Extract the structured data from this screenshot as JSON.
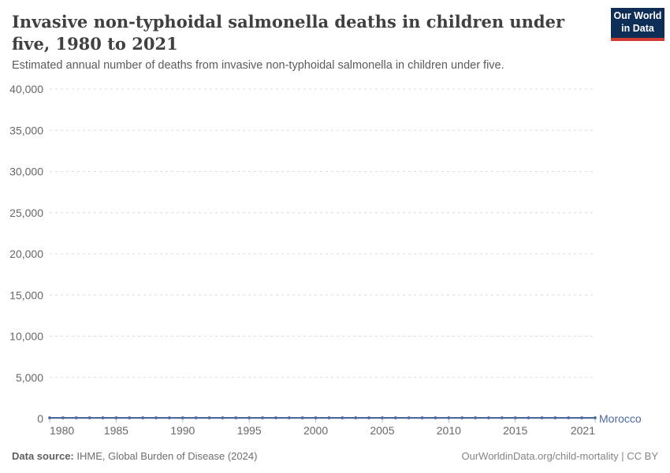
{
  "header": {
    "title": "Invasive non-typhoidal salmonella deaths in children under five, 1980 to 2021",
    "subtitle": "Estimated annual number of deaths from invasive non-typhoidal salmonella in children under five."
  },
  "logo": {
    "line1": "Our World",
    "line2": "in Data"
  },
  "footer": {
    "source_label": "Data source:",
    "source_text": " IHME, Global Burden of Disease (2024)",
    "license_text": "OurWorldinData.org/child-mortality | CC BY"
  },
  "colors": {
    "series_blue": "#4c6a9c",
    "grid": "#dcdcdc",
    "axis_baseline": "#cbcbcb",
    "tick_mark": "#b9bdc3",
    "tick_text": "#67676c",
    "logo_navy": "#0f2e57",
    "logo_red": "#cf3b32"
  },
  "chart_data": {
    "type": "line",
    "title": "Invasive non-typhoidal salmonella deaths in children under five, 1980 to 2021",
    "xlabel": "",
    "ylabel": "",
    "x": [
      1980,
      1981,
      1982,
      1983,
      1984,
      1985,
      1986,
      1987,
      1988,
      1989,
      1990,
      1991,
      1992,
      1993,
      1994,
      1995,
      1996,
      1997,
      1998,
      1999,
      2000,
      2001,
      2002,
      2003,
      2004,
      2005,
      2006,
      2007,
      2008,
      2009,
      2010,
      2011,
      2012,
      2013,
      2014,
      2015,
      2016,
      2017,
      2018,
      2019,
      2020,
      2021
    ],
    "series": [
      {
        "name": "Morocco",
        "color": "#4c6a9c",
        "values": [
          0,
          0,
          0,
          0,
          0,
          0,
          0,
          0,
          0,
          0,
          0,
          0,
          0,
          0,
          0,
          0,
          0,
          0,
          0,
          0,
          0,
          0,
          0,
          0,
          0,
          0,
          0,
          0,
          0,
          0,
          0,
          0,
          0,
          0,
          0,
          0,
          0,
          0,
          0,
          0,
          0,
          0
        ]
      }
    ],
    "values_note": "Series runs flat along the baseline; values are indistinguishable from zero at the 0–40,000 axis scale.",
    "ylim": [
      0,
      40000
    ],
    "yticks": [
      0,
      5000,
      10000,
      15000,
      20000,
      25000,
      30000,
      35000,
      40000
    ],
    "ytick_labels": [
      "0",
      "5,000",
      "10,000",
      "15,000",
      "20,000",
      "25,000",
      "30,000",
      "35,000",
      "40,000"
    ],
    "xticks": [
      1980,
      1985,
      1990,
      1995,
      2000,
      2005,
      2010,
      2015,
      2021
    ],
    "grid": "horizontal dashed",
    "legend_position": "end-of-line label",
    "marker": "point-per-year"
  }
}
